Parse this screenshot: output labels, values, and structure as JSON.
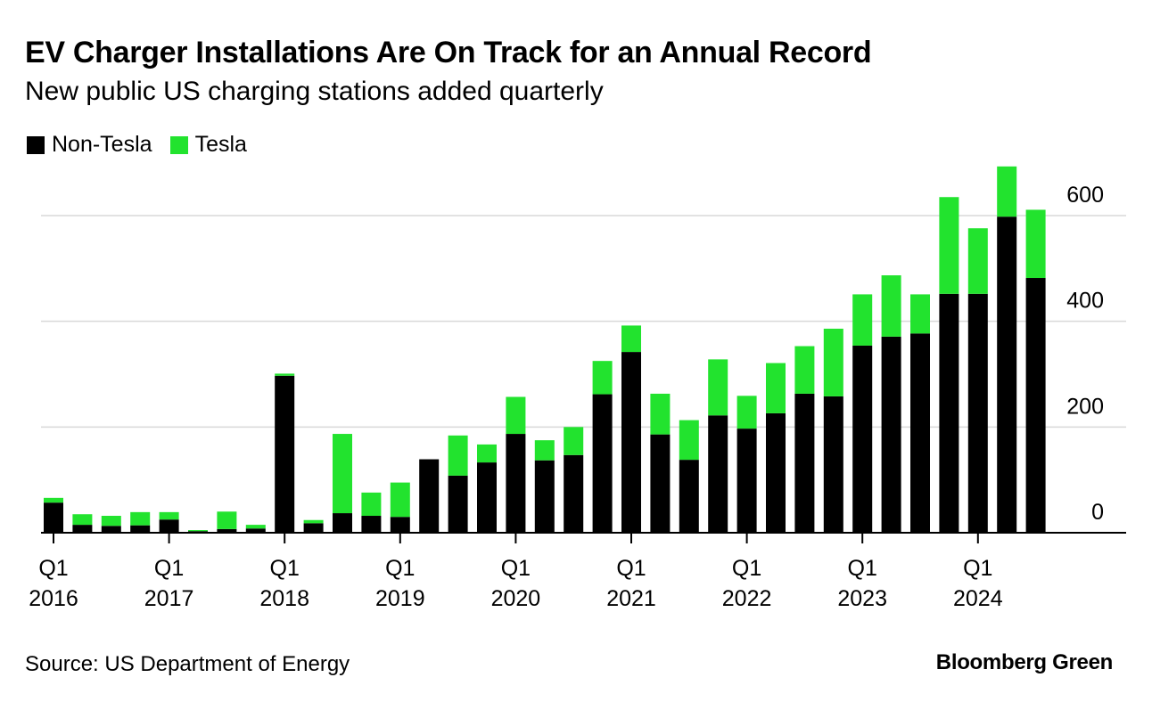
{
  "header": {
    "title": "EV Charger Installations Are On Track for an Annual Record",
    "subtitle": "New public US charging stations added quarterly"
  },
  "footer": {
    "source": "Source: US Department of Energy",
    "brand": "Bloomberg Green"
  },
  "colors": {
    "non_tesla": "#000000",
    "tesla": "#22e32e",
    "grid": "#d9d9d9",
    "axis": "#000000"
  },
  "chart_data": {
    "type": "bar",
    "stacked": true,
    "title": "EV Charger Installations Are On Track for an Annual Record",
    "subtitle": "New public US charging stations added quarterly",
    "xlabel": "",
    "ylabel": "",
    "ylim": [
      0,
      700
    ],
    "y_ticks": [
      0,
      200,
      400,
      600
    ],
    "y_axis_side": "right",
    "grid": true,
    "legend": "top-left",
    "categories": [
      "Q1 2016",
      "Q2 2016",
      "Q3 2016",
      "Q4 2016",
      "Q1 2017",
      "Q2 2017",
      "Q3 2017",
      "Q4 2017",
      "Q1 2018",
      "Q2 2018",
      "Q3 2018",
      "Q4 2018",
      "Q1 2019",
      "Q2 2019",
      "Q3 2019",
      "Q4 2019",
      "Q1 2020",
      "Q2 2020",
      "Q3 2020",
      "Q4 2020",
      "Q1 2021",
      "Q2 2021",
      "Q3 2021",
      "Q4 2021",
      "Q1 2022",
      "Q2 2022",
      "Q3 2022",
      "Q4 2022",
      "Q1 2023",
      "Q2 2023",
      "Q3 2023",
      "Q4 2023",
      "Q1 2024",
      "Q2 2024",
      "Q3 2024"
    ],
    "x_tick_labels": [
      {
        "index": 0,
        "line1": "Q1",
        "line2": "2016"
      },
      {
        "index": 4,
        "line1": "Q1",
        "line2": "2017"
      },
      {
        "index": 8,
        "line1": "Q1",
        "line2": "2018"
      },
      {
        "index": 12,
        "line1": "Q1",
        "line2": "2019"
      },
      {
        "index": 16,
        "line1": "Q1",
        "line2": "2020"
      },
      {
        "index": 20,
        "line1": "Q1",
        "line2": "2021"
      },
      {
        "index": 24,
        "line1": "Q1",
        "line2": "2022"
      },
      {
        "index": 28,
        "line1": "Q1",
        "line2": "2023"
      },
      {
        "index": 32,
        "line1": "Q1",
        "line2": "2024"
      }
    ],
    "series": [
      {
        "name": "Non-Tesla",
        "color": "#000000",
        "values": [
          57,
          15,
          13,
          14,
          25,
          3,
          7,
          8,
          297,
          18,
          37,
          32,
          30,
          139,
          108,
          133,
          187,
          137,
          147,
          262,
          342,
          186,
          138,
          222,
          197,
          226,
          263,
          258,
          354,
          371,
          377,
          452,
          452,
          598,
          482
        ]
      },
      {
        "name": "Tesla",
        "color": "#22e32e",
        "values": [
          9,
          20,
          19,
          25,
          14,
          2,
          33,
          7,
          4,
          6,
          150,
          44,
          65,
          0,
          76,
          34,
          70,
          38,
          53,
          63,
          50,
          77,
          75,
          106,
          62,
          95,
          90,
          128,
          97,
          116,
          74,
          183,
          124,
          95,
          129
        ]
      }
    ]
  }
}
